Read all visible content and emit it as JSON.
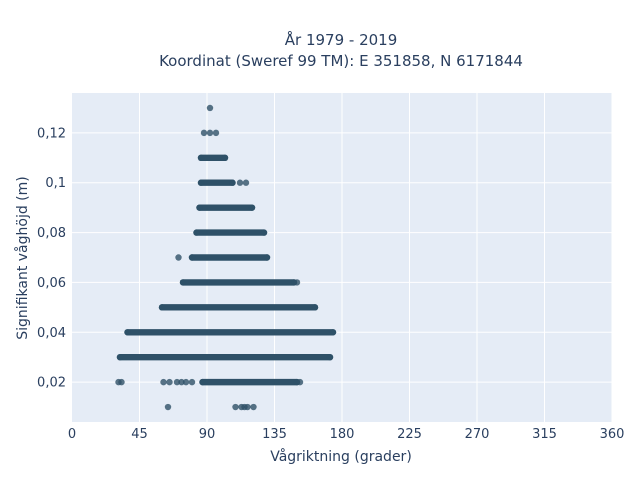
{
  "chart_data": {
    "type": "scatter",
    "title_lines": [
      "År 1979 - 2019",
      "Koordinat (Sweref 99 TM): E 351858, N 6171844"
    ],
    "xlabel": "Vågriktning (grader)",
    "ylabel": "Signifikant våghöjd (m)",
    "xlim": [
      0,
      360
    ],
    "ylim": [
      0.004,
      0.136
    ],
    "x_ticks": [
      0,
      45,
      90,
      135,
      180,
      225,
      270,
      315,
      360
    ],
    "x_tick_labels": [
      "0",
      "45",
      "90",
      "135",
      "180",
      "225",
      "270",
      "315",
      "360"
    ],
    "y_ticks": [
      0.02,
      0.04,
      0.06,
      0.08,
      0.1,
      0.12
    ],
    "y_tick_labels": [
      "0,02",
      "0,04",
      "0,06",
      "0,08",
      "0,1",
      "0,12"
    ],
    "grid": true,
    "marker_color": "#2f5168",
    "dense_bands": [
      {
        "y": 0.02,
        "x_start": 87,
        "x_end": 150
      },
      {
        "y": 0.03,
        "x_start": 32,
        "x_end": 172
      },
      {
        "y": 0.04,
        "x_start": 37,
        "x_end": 174
      },
      {
        "y": 0.05,
        "x_start": 60,
        "x_end": 162
      },
      {
        "y": 0.06,
        "x_start": 74,
        "x_end": 148
      },
      {
        "y": 0.07,
        "x_start": 80,
        "x_end": 130
      },
      {
        "y": 0.08,
        "x_start": 83,
        "x_end": 128
      },
      {
        "y": 0.09,
        "x_start": 85,
        "x_end": 120
      },
      {
        "y": 0.1,
        "x_start": 86,
        "x_end": 107
      },
      {
        "y": 0.11,
        "x_start": 86,
        "x_end": 102
      }
    ],
    "points": [
      {
        "x": 31,
        "y": 0.02
      },
      {
        "x": 33,
        "y": 0.02
      },
      {
        "x": 61,
        "y": 0.02
      },
      {
        "x": 65,
        "y": 0.02
      },
      {
        "x": 70,
        "y": 0.02
      },
      {
        "x": 73,
        "y": 0.02
      },
      {
        "x": 76,
        "y": 0.02
      },
      {
        "x": 80,
        "y": 0.02
      },
      {
        "x": 152,
        "y": 0.02
      },
      {
        "x": 64,
        "y": 0.01
      },
      {
        "x": 109,
        "y": 0.01
      },
      {
        "x": 113,
        "y": 0.01
      },
      {
        "x": 115,
        "y": 0.01
      },
      {
        "x": 117,
        "y": 0.01
      },
      {
        "x": 121,
        "y": 0.01
      },
      {
        "x": 71,
        "y": 0.07
      },
      {
        "x": 150,
        "y": 0.06
      },
      {
        "x": 112,
        "y": 0.1
      },
      {
        "x": 116,
        "y": 0.1
      },
      {
        "x": 88,
        "y": 0.12
      },
      {
        "x": 92,
        "y": 0.12
      },
      {
        "x": 96,
        "y": 0.12
      },
      {
        "x": 92,
        "y": 0.13
      }
    ]
  }
}
